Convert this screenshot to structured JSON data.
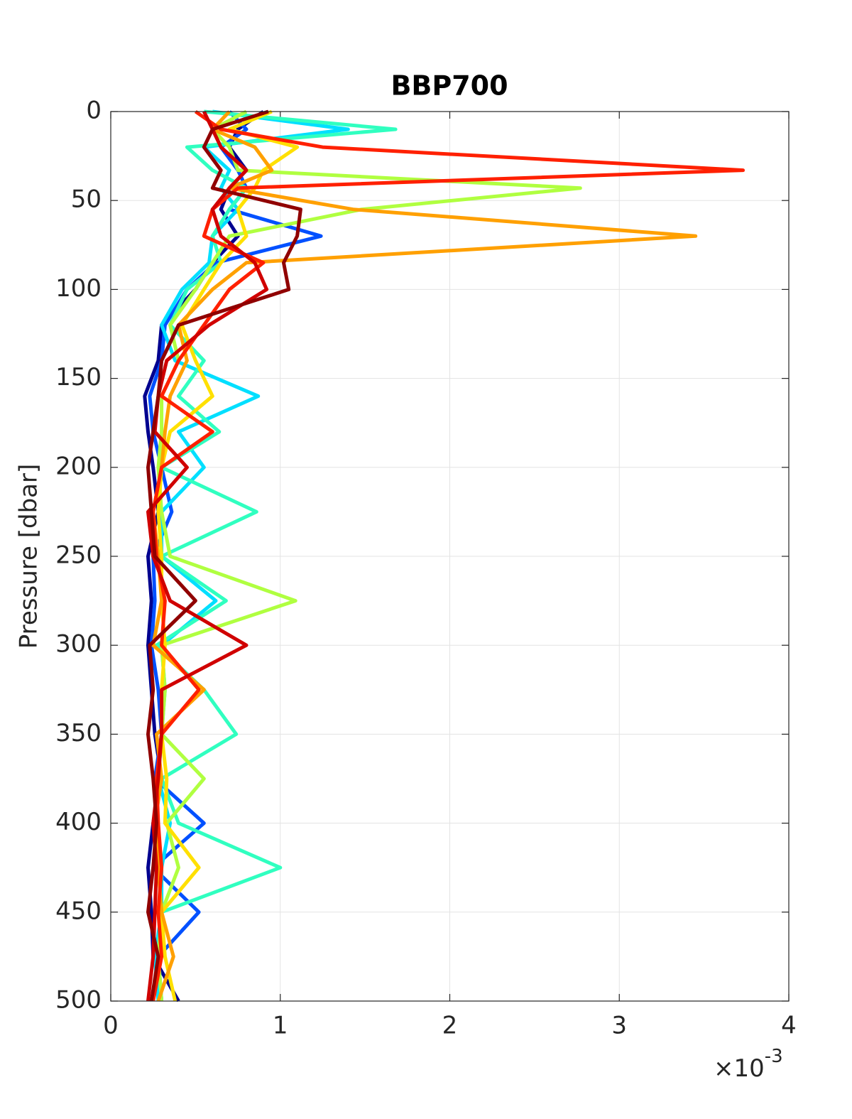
{
  "chart_data": {
    "type": "line",
    "title": "BBP700",
    "y_label": "Pressure [dbar]",
    "x_multiplier": "×10",
    "x_exponent": "-3",
    "pressure": [
      0,
      10,
      20,
      33,
      43,
      55,
      70,
      85,
      100,
      120,
      140,
      160,
      180,
      200,
      225,
      250,
      275,
      300,
      325,
      350,
      375,
      400,
      425,
      450,
      475,
      500
    ],
    "xlim": [
      0,
      4
    ],
    "xticks": [
      0,
      1,
      2,
      3,
      4
    ],
    "ylim": [
      0,
      500
    ],
    "yticks": [
      0,
      50,
      100,
      150,
      200,
      250,
      300,
      350,
      400,
      450,
      500
    ],
    "y_reversed": true,
    "grid": true,
    "series": [
      {
        "color": "#00008f",
        "values": [
          0.9,
          0.75,
          0.7,
          0.8,
          0.7,
          0.65,
          0.75,
          0.6,
          0.5,
          0.3,
          0.28,
          0.2,
          0.22,
          0.25,
          0.28,
          0.22,
          0.24,
          0.22,
          0.24,
          0.26,
          0.3,
          0.25,
          0.22,
          0.24,
          0.25,
          0.4
        ]
      },
      {
        "color": "#0050ff",
        "values": [
          0.7,
          0.8,
          0.65,
          0.75,
          0.8,
          0.7,
          1.24,
          0.62,
          0.45,
          0.32,
          0.3,
          0.23,
          0.25,
          0.3,
          0.36,
          0.25,
          0.26,
          0.24,
          0.28,
          0.3,
          0.26,
          0.55,
          0.25,
          0.52,
          0.28,
          0.3
        ]
      },
      {
        "color": "#00dfff",
        "values": [
          0.6,
          1.4,
          0.55,
          0.7,
          0.65,
          0.75,
          0.6,
          0.58,
          0.42,
          0.3,
          0.38,
          0.87,
          0.4,
          0.55,
          0.3,
          0.3,
          0.62,
          0.3,
          0.32,
          0.3,
          0.28,
          0.35,
          0.3,
          0.3,
          0.26,
          0.28
        ]
      },
      {
        "color": "#30ffc0",
        "values": [
          0.55,
          1.68,
          0.45,
          0.6,
          0.8,
          0.7,
          0.6,
          0.65,
          0.45,
          0.35,
          0.55,
          0.4,
          0.64,
          0.3,
          0.86,
          0.3,
          0.68,
          0.27,
          0.55,
          0.74,
          0.3,
          0.4,
          1.0,
          0.3,
          0.28,
          0.25
        ]
      },
      {
        "color": "#b0ff40",
        "values": [
          0.8,
          0.6,
          0.7,
          0.75,
          2.77,
          1.48,
          0.7,
          0.6,
          0.5,
          0.35,
          0.4,
          0.3,
          0.3,
          0.28,
          0.3,
          0.35,
          1.09,
          0.3,
          0.32,
          0.3,
          0.55,
          0.33,
          0.4,
          0.3,
          0.28,
          0.3
        ]
      },
      {
        "color": "#ffe000",
        "values": [
          0.95,
          0.7,
          1.1,
          0.9,
          0.85,
          0.75,
          0.8,
          0.65,
          0.55,
          0.42,
          0.5,
          0.6,
          0.35,
          0.3,
          0.28,
          0.3,
          0.3,
          0.32,
          0.3,
          0.3,
          0.33,
          0.32,
          0.52,
          0.3,
          0.32,
          0.38
        ]
      },
      {
        "color": "#ffa000",
        "values": [
          0.7,
          0.6,
          0.85,
          0.95,
          0.7,
          1.43,
          3.45,
          0.8,
          0.6,
          0.4,
          0.45,
          0.35,
          0.32,
          0.3,
          0.25,
          0.28,
          0.3,
          0.25,
          0.55,
          0.27,
          0.3,
          0.26,
          0.28,
          0.3,
          0.37,
          0.28
        ]
      },
      {
        "color": "#ff2000",
        "values": [
          0.5,
          0.65,
          1.25,
          3.73,
          0.75,
          0.6,
          0.55,
          0.9,
          0.7,
          0.55,
          0.4,
          0.3,
          0.6,
          0.3,
          0.25,
          0.27,
          0.32,
          0.3,
          0.52,
          0.3,
          0.27,
          0.28,
          0.3,
          0.28,
          0.3,
          0.25
        ]
      },
      {
        "color": "#d00000",
        "values": [
          0.55,
          0.6,
          0.65,
          0.8,
          0.7,
          0.6,
          0.65,
          0.85,
          0.92,
          0.58,
          0.33,
          0.28,
          0.26,
          0.45,
          0.22,
          0.25,
          0.35,
          0.8,
          0.3,
          0.3,
          0.28,
          0.25,
          0.27,
          0.26,
          0.25,
          0.22
        ]
      },
      {
        "color": "#900000",
        "values": [
          0.93,
          0.6,
          0.55,
          0.65,
          0.6,
          1.12,
          1.1,
          1.02,
          1.05,
          0.4,
          0.3,
          0.28,
          0.25,
          0.22,
          0.24,
          0.26,
          0.5,
          0.23,
          0.25,
          0.22,
          0.25,
          0.27,
          0.25,
          0.22,
          0.28,
          0.24
        ]
      }
    ]
  }
}
